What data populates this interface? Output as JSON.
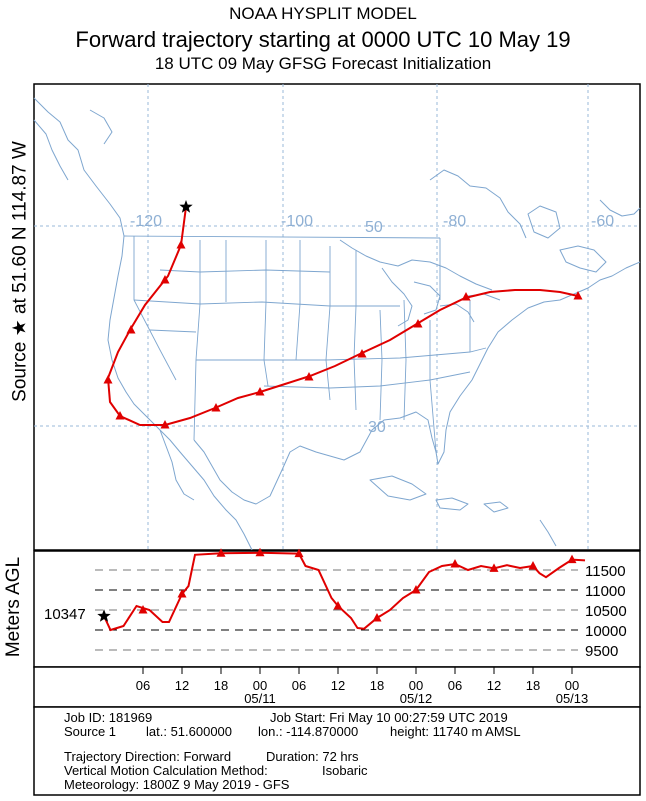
{
  "header": {
    "line1": "NOAA HYSPLIT MODEL",
    "line2": "Forward trajectory starting at 0000 UTC 10 May 19",
    "line3": "18 UTC 09 May    GFSG  Forecast Initialization"
  },
  "axis_labels": {
    "source": "Source ★  at   51.60 N  114.87 W",
    "height_axis": "Meters AGL"
  },
  "map": {
    "lon_labels": [
      "-120",
      "-100",
      "-80",
      "-60"
    ],
    "lat_labels": [
      "50",
      "30"
    ],
    "colors": {
      "coast": "#7ea6cf",
      "grid": "#9ab8d8",
      "trajectory": "#e00000"
    }
  },
  "height_panel": {
    "start_value": "10347",
    "y_ticks": [
      "11500",
      "11000",
      "10500",
      "10000",
      "9500"
    ]
  },
  "time_axis": {
    "hour_ticks": [
      "06",
      "12",
      "18",
      "00",
      "06",
      "12",
      "18",
      "00",
      "06",
      "12",
      "18",
      "00"
    ],
    "dates": [
      "05/11",
      "05/12",
      "05/13"
    ]
  },
  "info": {
    "job_id": "Job ID: 181969",
    "job_start": "Job Start: Fri May 10 00:27:59 UTC 2019",
    "source": "Source 1",
    "lat": "lat.: 51.600000",
    "lon": "lon.: -114.870000",
    "height": "height: 11740 m AMSL",
    "direction": "Trajectory Direction: Forward",
    "duration": "Duration: 72 hrs",
    "vertical_label": "Vertical Motion Calculation Method:",
    "vertical_value": "Isobaric",
    "meteorology": "Meteorology: 1800Z  9 May 2019 - GFS"
  }
}
